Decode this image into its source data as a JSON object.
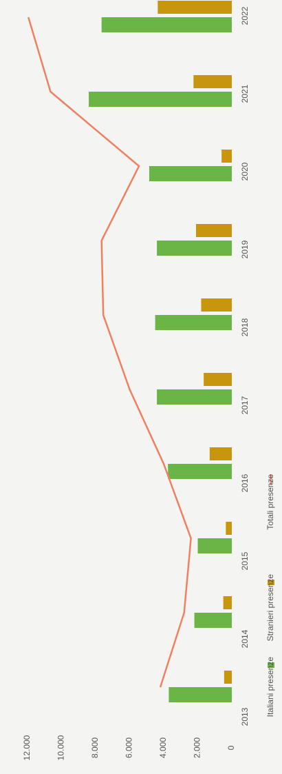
{
  "chart_data": {
    "type": "bar-line",
    "categories": [
      "2013",
      "2014",
      "2015",
      "2016",
      "2017",
      "2018",
      "2019",
      "2020",
      "2021",
      "2022"
    ],
    "series": [
      {
        "name": "Italiani presenze",
        "type": "bar",
        "color": "#6ab545",
        "values": [
          3700,
          2200,
          2000,
          3750,
          4400,
          4500,
          4400,
          4850,
          8400,
          7650
        ]
      },
      {
        "name": "Stranieri presenze",
        "type": "bar",
        "color": "#c8960c",
        "values": [
          450,
          500,
          350,
          1300,
          1650,
          1800,
          2100,
          600,
          2250,
          4350
        ]
      },
      {
        "name": "Totali presenze",
        "type": "line",
        "color": "#f08060",
        "values": [
          4200,
          2800,
          2400,
          4000,
          6000,
          7550,
          7650,
          5450,
          10650,
          11950
        ]
      }
    ],
    "ylim": [
      0,
      12000
    ],
    "yticks": [
      0,
      {
        "value": 2000,
        "label": "2.000"
      },
      {
        "value": 4000,
        "label": "4.000"
      },
      {
        "value": 6000,
        "label": "6.000"
      },
      {
        "value": 8000,
        "label": "8.000"
      },
      {
        "value": 10000,
        "label": "10.000"
      },
      {
        "value": 12000,
        "label": "12.000"
      }
    ],
    "legend": "bottom"
  }
}
